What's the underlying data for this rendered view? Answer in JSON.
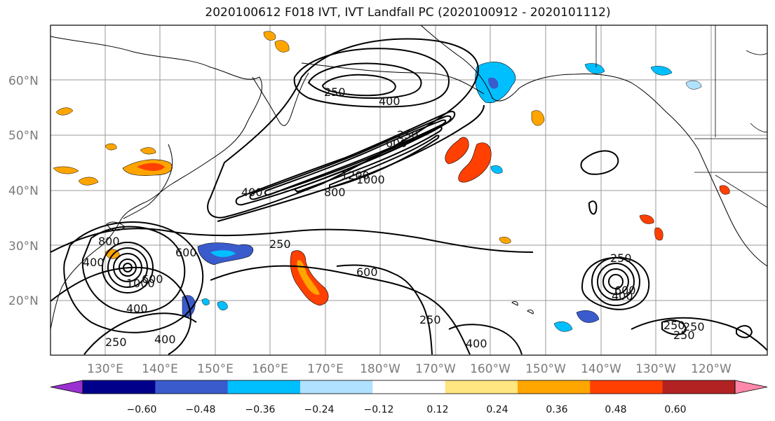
{
  "title": "2020100612 F018 IVT, IVT Landfall PC (2020100912 - 2020101112)",
  "map": {
    "lat_labels": [
      "60°N",
      "50°N",
      "40°N",
      "30°N",
      "20°N"
    ],
    "lon_labels": [
      "130°E",
      "140°E",
      "150°E",
      "160°E",
      "170°E",
      "180°W",
      "170°W",
      "160°W",
      "150°W",
      "140°W",
      "130°W",
      "120°W"
    ],
    "contour_labels": [
      "250",
      "400",
      "600",
      "1200",
      "1000",
      "800",
      "250",
      "400",
      "600",
      "250",
      "600",
      "250",
      "400",
      "1000",
      "800",
      "400",
      "250",
      "400",
      "250",
      "600",
      "250",
      "400",
      "250",
      "400",
      "600",
      "250"
    ],
    "colors": {
      "coast": "#000000",
      "grid": "#9a9a9a",
      "contour": "#000000"
    }
  },
  "colorbar": {
    "ticks": [
      "−0.60",
      "−0.48",
      "−0.36",
      "−0.24",
      "−0.12",
      "0.12",
      "0.24",
      "0.36",
      "0.48",
      "0.60"
    ],
    "colors": [
      "#9b30d0",
      "#00008b",
      "#3a5bcc",
      "#00bfff",
      "#b0e2ff",
      "#ffffff",
      "#ffe680",
      "#ffa500",
      "#ff4000",
      "#b22222",
      "#ff88aa"
    ]
  }
}
